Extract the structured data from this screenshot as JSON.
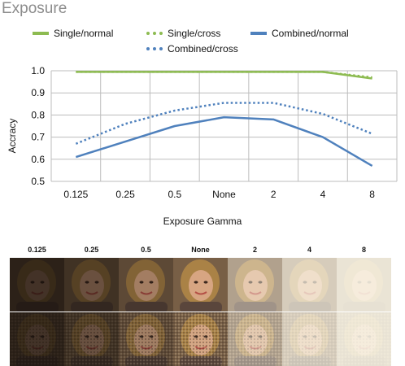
{
  "figure": {
    "title": "Exposure",
    "xlabel": "Exposure Gamma",
    "ylabel": "Accracy"
  },
  "legend": {
    "items": [
      {
        "label": "Single/normal",
        "color": "#8dbb51",
        "style": "solid"
      },
      {
        "label": "Single/cross",
        "color": "#8dbb51",
        "style": "dotted"
      },
      {
        "label": "Combined/normal",
        "color": "#4f81bd",
        "style": "solid"
      },
      {
        "label": "Combined/cross",
        "color": "#4f81bd",
        "style": "dotted"
      }
    ]
  },
  "chart_data": {
    "type": "line",
    "x": [
      "0.125",
      "0.25",
      "0.5",
      "None",
      "2",
      "4",
      "8"
    ],
    "xlabel": "Exposure Gamma",
    "ylabel": "Accracy",
    "ylim": [
      0.5,
      1.0
    ],
    "yticks": [
      "0.5",
      "0.6",
      "0.7",
      "0.8",
      "0.9",
      "1.0"
    ],
    "grid": true,
    "legend_position": "top",
    "series": [
      {
        "name": "Single/normal",
        "color": "#8dbb51",
        "style": "solid",
        "values": [
          0.995,
          0.995,
          0.995,
          0.995,
          0.995,
          0.995,
          0.965
        ]
      },
      {
        "name": "Single/cross",
        "color": "#8dbb51",
        "style": "dotted",
        "values": [
          0.995,
          0.995,
          0.995,
          0.995,
          0.995,
          0.995,
          0.97
        ]
      },
      {
        "name": "Combined/normal",
        "color": "#4f81bd",
        "style": "solid",
        "values": [
          0.61,
          0.68,
          0.75,
          0.79,
          0.78,
          0.7,
          0.57
        ]
      },
      {
        "name": "Combined/cross",
        "color": "#4f81bd",
        "style": "dotted",
        "values": [
          0.67,
          0.76,
          0.82,
          0.855,
          0.855,
          0.805,
          0.715
        ]
      }
    ]
  },
  "image_strip": {
    "labels": [
      "0.125",
      "0.25",
      "0.5",
      "None",
      "2",
      "4",
      "8"
    ],
    "brightness": [
      0.18,
      0.33,
      0.55,
      0.75,
      0.86,
      0.93,
      0.97
    ]
  }
}
